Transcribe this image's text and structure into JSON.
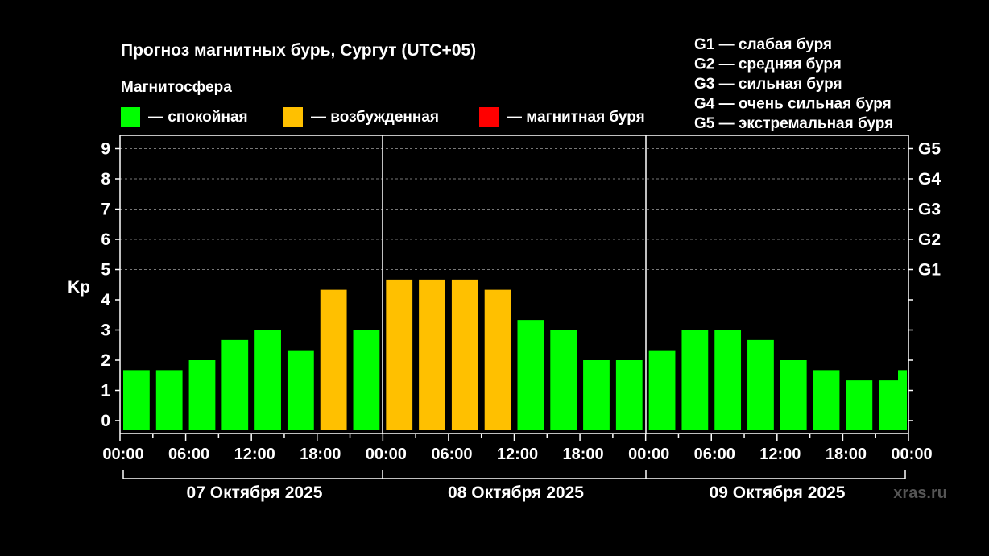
{
  "chart_data": {
    "type": "bar",
    "title": "Прогноз магнитных бурь, Сургут (UTC+05)",
    "subtitle": "Магнитосфера",
    "legend": [
      {
        "label": "— спокойная",
        "color": "#00ff00"
      },
      {
        "label": "— возбужденная",
        "color": "#ffc000"
      },
      {
        "label": "— магнитная буря",
        "color": "#ff0000"
      }
    ],
    "g_legend": [
      "G1 — слабая буря",
      "G2 — средняя буря",
      "G3 — сильная буря",
      "G4 — очень сильная буря",
      "G5 — экстремальная буря"
    ],
    "ylabel": "Kp",
    "ylim": [
      0,
      9
    ],
    "y_ticks": [
      "0",
      "1",
      "2",
      "3",
      "4",
      "5",
      "6",
      "7",
      "8",
      "9"
    ],
    "g_ticks": [
      {
        "label": "G1",
        "value": 5
      },
      {
        "label": "G2",
        "value": 6
      },
      {
        "label": "G3",
        "value": 7
      },
      {
        "label": "G4",
        "value": 8
      },
      {
        "label": "G5",
        "value": 9
      }
    ],
    "x_tick_labels": [
      "00:00",
      "06:00",
      "12:00",
      "18:00",
      "00:00",
      "06:00",
      "12:00",
      "18:00",
      "00:00",
      "06:00",
      "12:00",
      "18:00",
      "00:00"
    ],
    "days": [
      "07 Октября 2025",
      "08 Октября 2025",
      "09 Октября 2025"
    ],
    "values": [
      1.67,
      1.67,
      2.0,
      2.67,
      3.0,
      2.33,
      4.33,
      3.0,
      4.67,
      4.67,
      4.67,
      4.33,
      3.33,
      3.0,
      2.0,
      2.0,
      2.33,
      3.0,
      3.0,
      2.67,
      2.0,
      1.67,
      1.33,
      1.33,
      1.67
    ],
    "grid": "dashed horizontal at Kp 5-9"
  },
  "watermark": "xras.ru"
}
